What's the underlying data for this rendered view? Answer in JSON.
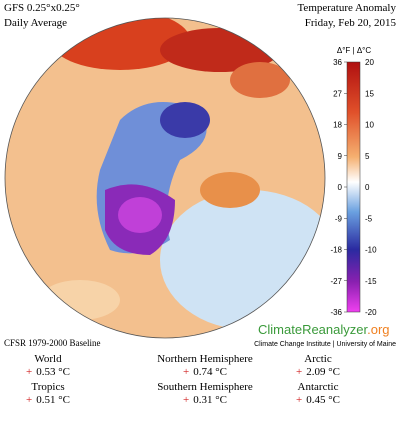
{
  "header": {
    "model": "GFS 0.25°x0.25°",
    "period": "Daily Average",
    "title": "Temperature Anomaly",
    "date": "Friday, Feb 20, 2015"
  },
  "colorbar": {
    "header": "Δ°F | Δ°C",
    "f_ticks": [
      "36",
      "27",
      "18",
      "9",
      "0",
      "-9",
      "-18",
      "-27",
      "-36"
    ],
    "c_ticks": [
      "20",
      "15",
      "10",
      "5",
      "0",
      "-5",
      "-10",
      "-15",
      "-20"
    ]
  },
  "footer": {
    "baseline": "CFSR 1979-2000 Baseline",
    "brand": "ClimateReanalyzer",
    "brand_suffix": ".org",
    "institute": "Climate Change Institute | University of Maine"
  },
  "stats": [
    {
      "label": "World",
      "sign": "+",
      "value": "0.53 °C"
    },
    {
      "label": "Northern Hemisphere",
      "sign": "+",
      "value": "0.74 °C"
    },
    {
      "label": "Arctic",
      "sign": "+",
      "value": "2.09 °C"
    },
    {
      "label": "Tropics",
      "sign": "+",
      "value": "0.51 °C"
    },
    {
      "label": "Southern Hemisphere",
      "sign": "+",
      "value": "0.31 °C"
    },
    {
      "label": "Antarctic",
      "sign": "+",
      "value": "0.45 °C"
    }
  ]
}
